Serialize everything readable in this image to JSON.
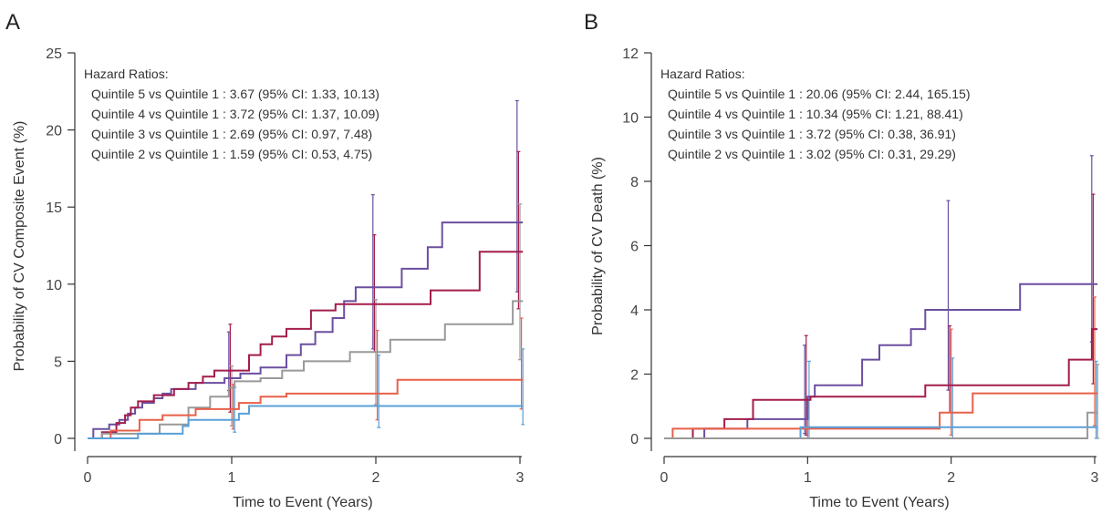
{
  "chart_data": [
    {
      "type": "line",
      "panel_label": "A",
      "xlabel": "Time to Event (Years)",
      "ylabel": "Probability of CV Composite Event (%)",
      "xlim": [
        0,
        3
      ],
      "ylim": [
        0,
        25
      ],
      "xticks": [
        0,
        1,
        2,
        3
      ],
      "yticks": [
        0,
        5,
        10,
        15,
        20,
        25
      ],
      "legend": "none",
      "grid": false,
      "annotation_title": "Hazard Ratios:",
      "annotations": [
        "Quintile 5 vs Quintile 1 : 3.67 (95% CI: 1.33, 10.13)",
        "Quintile 4 vs Quintile 1 : 3.72 (95% CI: 1.37, 10.09)",
        "Quintile 3 vs Quintile 1 : 2.69 (95% CI: 0.97, 7.48)",
        "Quintile 2 vs Quintile 1 : 1.59 (95% CI: 0.53, 4.75)"
      ],
      "series": [
        {
          "color": "#6b4fa0",
          "steps": [
            [
              0,
              0
            ],
            [
              0.04,
              0.6
            ],
            [
              0.15,
              0.9
            ],
            [
              0.22,
              1.2
            ],
            [
              0.28,
              1.6
            ],
            [
              0.33,
              2.0
            ],
            [
              0.38,
              2.3
            ],
            [
              0.46,
              2.6
            ],
            [
              0.52,
              2.9
            ],
            [
              0.58,
              3.2
            ],
            [
              0.75,
              3.6
            ],
            [
              0.95,
              3.9
            ],
            [
              1.06,
              4.2
            ],
            [
              1.2,
              4.6
            ],
            [
              1.38,
              5.4
            ],
            [
              1.48,
              6.1
            ],
            [
              1.58,
              6.9
            ],
            [
              1.7,
              7.8
            ],
            [
              1.78,
              8.9
            ],
            [
              1.86,
              9.8
            ],
            [
              2.18,
              11.0
            ],
            [
              2.36,
              12.4
            ],
            [
              2.46,
              14.0
            ],
            [
              3.02,
              14.0
            ]
          ],
          "ci": [
            [
              1.0,
              3.1,
              6.9
            ],
            [
              2.0,
              5.8,
              15.8
            ],
            [
              3.0,
              9.5,
              21.9
            ]
          ]
        },
        {
          "color": "#a31d4b",
          "steps": [
            [
              0,
              0
            ],
            [
              0.1,
              0.4
            ],
            [
              0.2,
              1.0
            ],
            [
              0.26,
              1.5
            ],
            [
              0.3,
              2.0
            ],
            [
              0.35,
              2.4
            ],
            [
              0.46,
              2.8
            ],
            [
              0.6,
              3.2
            ],
            [
              0.7,
              3.6
            ],
            [
              0.8,
              4.0
            ],
            [
              0.88,
              4.4
            ],
            [
              1.12,
              5.4
            ],
            [
              1.2,
              6.1
            ],
            [
              1.28,
              6.6
            ],
            [
              1.38,
              7.1
            ],
            [
              1.55,
              8.3
            ],
            [
              1.72,
              8.7
            ],
            [
              2.38,
              9.6
            ],
            [
              2.72,
              12.1
            ],
            [
              3.02,
              12.1
            ]
          ],
          "ci": [
            [
              1.0,
              1.7,
              7.4
            ],
            [
              2.0,
              5.6,
              13.2
            ],
            [
              3.0,
              8.4,
              18.6
            ]
          ]
        },
        {
          "color": "#999999",
          "steps": [
            [
              0,
              0
            ],
            [
              0.1,
              0.3
            ],
            [
              0.5,
              0.9
            ],
            [
              0.7,
              2.0
            ],
            [
              0.85,
              2.7
            ],
            [
              0.98,
              3.3
            ],
            [
              1.02,
              3.7
            ],
            [
              1.2,
              3.9
            ],
            [
              1.35,
              4.4
            ],
            [
              1.5,
              5.0
            ],
            [
              1.82,
              5.6
            ],
            [
              2.1,
              6.4
            ],
            [
              2.48,
              7.4
            ],
            [
              2.95,
              8.9
            ],
            [
              3.02,
              8.9
            ]
          ],
          "ci": [
            [
              1.0,
              0.8,
              4.7
            ],
            [
              2.0,
              2.2,
              9.0
            ],
            [
              3.0,
              5.1,
              15.2
            ]
          ]
        },
        {
          "color": "#e8604a",
          "steps": [
            [
              0,
              0
            ],
            [
              0.16,
              0.5
            ],
            [
              0.36,
              1.2
            ],
            [
              0.52,
              1.5
            ],
            [
              0.75,
              1.9
            ],
            [
              1.05,
              2.3
            ],
            [
              1.2,
              2.7
            ],
            [
              1.38,
              2.9
            ],
            [
              2.15,
              3.8
            ],
            [
              3.02,
              3.8
            ]
          ],
          "ci": [
            [
              1.0,
              0.6,
              3.5
            ],
            [
              2.0,
              1.2,
              7.0
            ],
            [
              3.0,
              1.9,
              7.8
            ]
          ]
        },
        {
          "color": "#5aa0d8",
          "steps": [
            [
              0,
              0
            ],
            [
              0.35,
              0.3
            ],
            [
              0.66,
              0.8
            ],
            [
              0.7,
              1.2
            ],
            [
              1.05,
              1.6
            ],
            [
              1.12,
              2.1
            ],
            [
              3.02,
              2.1
            ]
          ],
          "ci": [
            [
              1.0,
              0.4,
              3.3
            ],
            [
              2.0,
              0.7,
              5.4
            ],
            [
              3.0,
              0.9,
              5.8
            ]
          ]
        }
      ]
    },
    {
      "type": "line",
      "panel_label": "B",
      "xlabel": "Time to Event (Years)",
      "ylabel": "Probability of CV Death (%)",
      "xlim": [
        0,
        3
      ],
      "ylim": [
        0,
        12
      ],
      "xticks": [
        0,
        1,
        2,
        3
      ],
      "yticks": [
        0,
        2,
        4,
        6,
        8,
        10,
        12
      ],
      "legend": "none",
      "grid": false,
      "annotation_title": "Hazard Ratios:",
      "annotations": [
        "Quintile 5 vs Quintile 1 : 20.06 (95% CI: 2.44, 165.15)",
        "Quintile 4 vs Quintile 1 : 10.34 (95% CI: 1.21, 88.41)",
        "Quintile 3 vs Quintile 1 : 3.72 (95% CI: 0.38, 36.91)",
        "Quintile 2 vs Quintile 1 : 3.02 (95% CI: 0.31, 29.29)"
      ],
      "series": [
        {
          "color": "#6b4fa0",
          "steps": [
            [
              0,
              0
            ],
            [
              0.28,
              0.3
            ],
            [
              0.58,
              0.6
            ],
            [
              1.0,
              1.3
            ],
            [
              1.05,
              1.65
            ],
            [
              1.38,
              2.45
            ],
            [
              1.5,
              2.9
            ],
            [
              1.72,
              3.4
            ],
            [
              1.82,
              4.0
            ],
            [
              2.48,
              4.8
            ],
            [
              3.02,
              4.8
            ]
          ],
          "ci": [
            [
              1.0,
              0.15,
              2.9
            ],
            [
              2.0,
              1.5,
              7.4
            ],
            [
              3.0,
              3.0,
              8.8
            ]
          ]
        },
        {
          "color": "#a31d4b",
          "steps": [
            [
              0,
              0
            ],
            [
              0.2,
              0.3
            ],
            [
              0.42,
              0.6
            ],
            [
              0.62,
              1.2
            ],
            [
              1.02,
              1.3
            ],
            [
              1.82,
              1.65
            ],
            [
              2.82,
              2.45
            ],
            [
              2.98,
              3.4
            ],
            [
              3.02,
              3.4
            ]
          ],
          "ci": [
            [
              1.0,
              0.1,
              3.2
            ],
            [
              2.0,
              0.8,
              3.5
            ],
            [
              3.0,
              1.7,
              7.6
            ]
          ]
        },
        {
          "color": "#e8604a",
          "steps": [
            [
              0,
              0
            ],
            [
              0.06,
              0.3
            ],
            [
              1.92,
              0.8
            ],
            [
              2.15,
              1.4
            ],
            [
              3.02,
              1.4
            ]
          ],
          "ci": [
            [
              1.0,
              0.0,
              1.0
            ],
            [
              2.0,
              0.1,
              3.4
            ],
            [
              3.0,
              0.4,
              4.4
            ]
          ]
        },
        {
          "color": "#5aa0d8",
          "steps": [
            [
              0,
              0
            ],
            [
              0.95,
              0.35
            ],
            [
              3.02,
              0.35
            ]
          ],
          "ci": [
            [
              1.0,
              0.0,
              2.4
            ],
            [
              2.0,
              0.0,
              2.5
            ],
            [
              3.0,
              0.0,
              2.4
            ]
          ]
        },
        {
          "color": "#999999",
          "steps": [
            [
              0,
              0
            ],
            [
              2.95,
              0.8
            ],
            [
              3.02,
              0.8
            ]
          ],
          "ci": [
            [
              3.0,
              0.0,
              2.3
            ]
          ]
        }
      ]
    }
  ]
}
